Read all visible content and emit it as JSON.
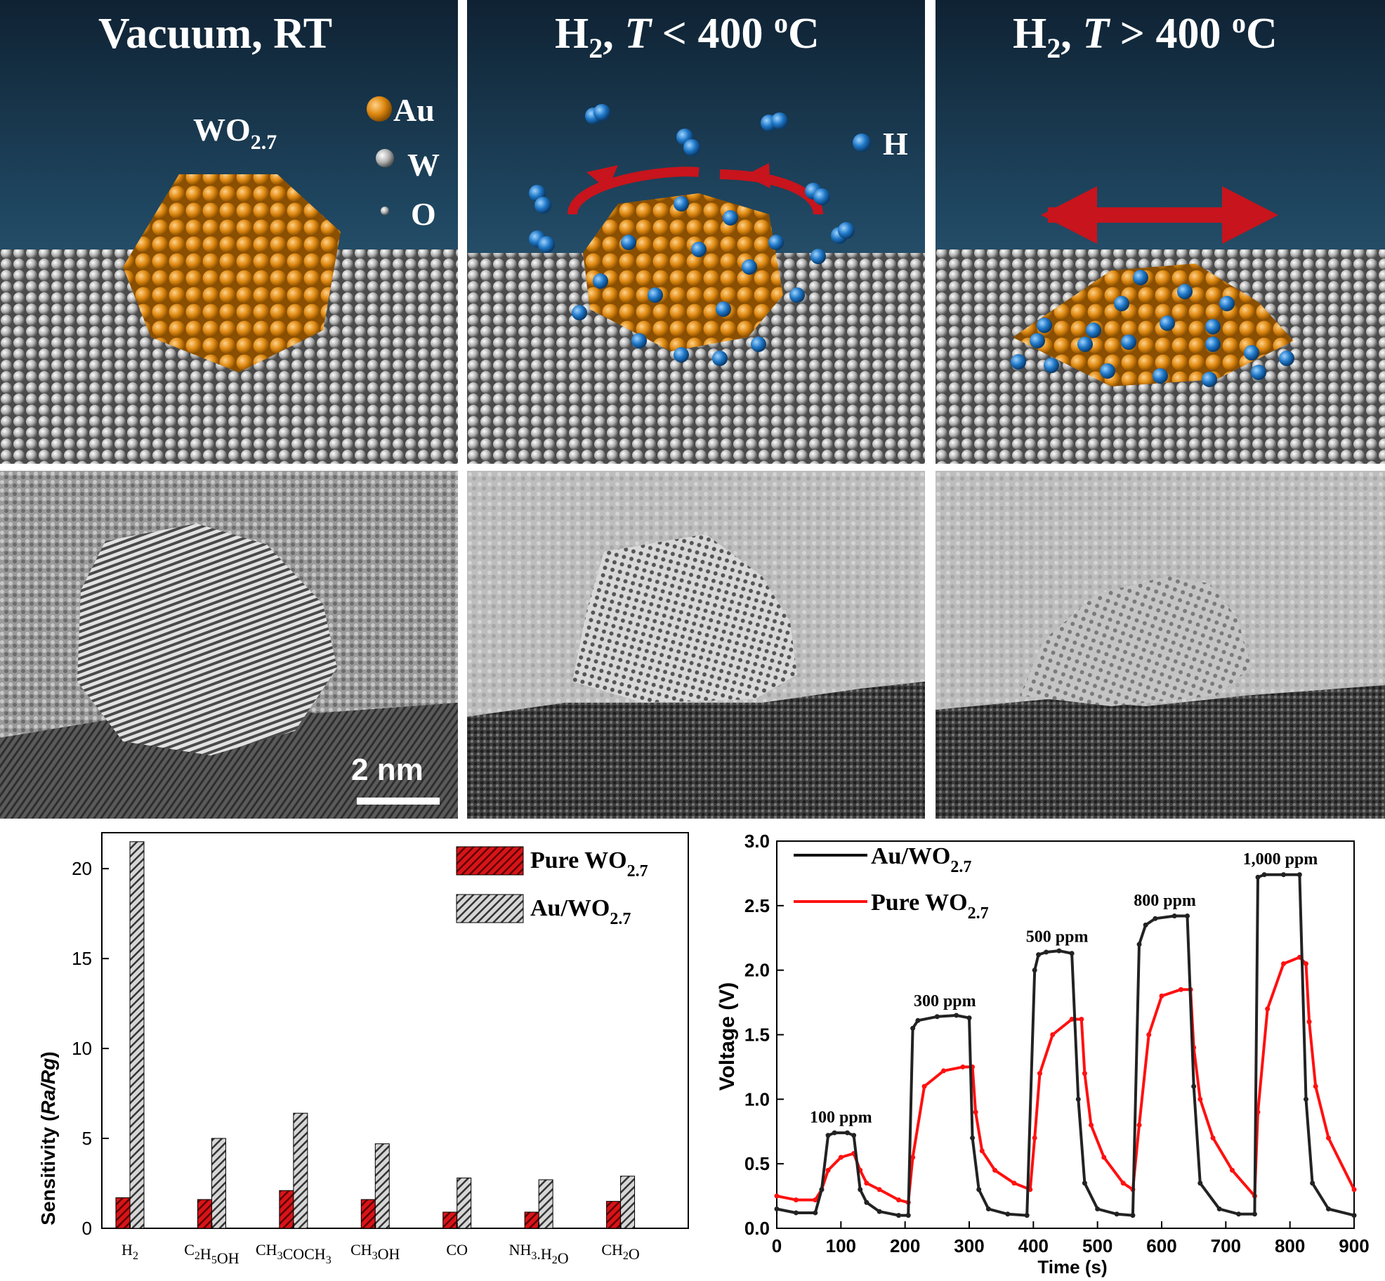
{
  "top_panels": [
    {
      "title": "Vacuum, RT",
      "label": "WO2.7",
      "legend": [
        {
          "symbol": "Au"
        },
        {
          "symbol": "W"
        },
        {
          "symbol": "O"
        }
      ]
    },
    {
      "title_main": "H",
      "title_sub": "2",
      "title_rest": ", ",
      "title_ital": "T",
      "title_cmp": " < 400 ",
      "title_sup": "o",
      "title_end": "C",
      "legend": [
        {
          "symbol": "H"
        }
      ]
    },
    {
      "title_main": "H",
      "title_sub": "2",
      "title_rest": ", ",
      "title_ital": "T",
      "title_cmp": " > 400 ",
      "title_sup": "o",
      "title_end": "C"
    }
  ],
  "panel1_label_main": "WO",
  "panel1_label_sub": "2.7",
  "scale_bar": "2  nm",
  "colors": {
    "au": "#e08a12",
    "w": "#b9b9b9",
    "h": "#1f78c8",
    "arrow": "#c8141c",
    "pure": "#d81418",
    "auwo": "#222222",
    "pure_line": "#ff1010"
  },
  "chart_data": [
    {
      "type": "bar",
      "ylabel": "Sensitivity (Ra/Rg)",
      "ylabel_plain": "Sensitivity (",
      "ylabel_ital": "Ra/Rg",
      "ylabel_close": ")",
      "ylim": [
        0,
        22
      ],
      "yticks": [
        0,
        5,
        10,
        15,
        20
      ],
      "categories": [
        "H2",
        "C2H5OH",
        "CH3COCH3",
        "CH3OH",
        "CO",
        "NH3.H2O",
        "CH2O"
      ],
      "category_labels": [
        [
          [
            "H",
            ""
          ],
          [
            "2",
            "sub"
          ]
        ],
        [
          [
            "C",
            ""
          ],
          [
            "2",
            "sub"
          ],
          [
            "H",
            ""
          ],
          [
            "5",
            "sub"
          ],
          [
            "OH",
            ""
          ]
        ],
        [
          [
            "CH",
            ""
          ],
          [
            "3",
            "sub"
          ],
          [
            "COCH",
            ""
          ],
          [
            "3",
            "sub"
          ]
        ],
        [
          [
            "CH",
            ""
          ],
          [
            "3",
            "sub"
          ],
          [
            "OH",
            ""
          ]
        ],
        [
          [
            "CO",
            ""
          ]
        ],
        [
          [
            "NH",
            ""
          ],
          [
            "3",
            "sub"
          ],
          [
            ".H",
            ""
          ],
          [
            "2",
            "sub"
          ],
          [
            "O",
            ""
          ]
        ],
        [
          [
            "CH",
            ""
          ],
          [
            "2",
            "sub"
          ],
          [
            "O",
            ""
          ]
        ]
      ],
      "series": [
        {
          "name": "Pure WO2.7",
          "name_main": "Pure WO",
          "name_sub": "2.7",
          "values": [
            1.7,
            1.6,
            2.1,
            1.6,
            0.9,
            0.9,
            1.5
          ]
        },
        {
          "name": "Au/WO2.7",
          "name_main": "Au/WO",
          "name_sub": "2.7",
          "values": [
            21.5,
            5.0,
            6.4,
            4.7,
            2.8,
            2.7,
            2.9
          ]
        }
      ],
      "legend": "top-right"
    },
    {
      "type": "line",
      "xlabel": "Time (s)",
      "ylabel": "Voltage (V)",
      "xlim": [
        0,
        900
      ],
      "ylim": [
        0,
        3.0
      ],
      "xticks": [
        0,
        100,
        200,
        300,
        400,
        500,
        600,
        700,
        800,
        900
      ],
      "yticks": [
        0.0,
        0.5,
        1.0,
        1.5,
        2.0,
        2.5,
        3.0
      ],
      "ytick_labels": [
        "0.0",
        "0.5",
        "1.0",
        "1.5",
        "2.0",
        "2.5",
        "3.0"
      ],
      "annotations": [
        {
          "text": "100 ppm",
          "x": 100,
          "y": 0.82
        },
        {
          "text": "300 ppm",
          "x": 262,
          "y": 1.72
        },
        {
          "text": "500 ppm",
          "x": 437,
          "y": 2.22
        },
        {
          "text": "800 ppm",
          "x": 605,
          "y": 2.5
        },
        {
          "text": "1,000 ppm",
          "x": 785,
          "y": 2.82
        }
      ],
      "series": [
        {
          "name": "Au/WO2.7",
          "name_main": "Au/WO",
          "name_sub": "2.7",
          "x": [
            0,
            30,
            60,
            70,
            80,
            90,
            110,
            120,
            130,
            140,
            160,
            190,
            205,
            212,
            220,
            250,
            280,
            300,
            305,
            315,
            330,
            360,
            390,
            402,
            408,
            420,
            440,
            460,
            470,
            480,
            500,
            530,
            555,
            565,
            575,
            590,
            620,
            640,
            650,
            660,
            690,
            720,
            745,
            750,
            760,
            790,
            815,
            825,
            835,
            860,
            900
          ],
          "y": [
            0.15,
            0.12,
            0.12,
            0.3,
            0.72,
            0.74,
            0.74,
            0.72,
            0.3,
            0.2,
            0.13,
            0.1,
            0.1,
            1.55,
            1.61,
            1.64,
            1.65,
            1.63,
            0.7,
            0.3,
            0.15,
            0.11,
            0.1,
            2.0,
            2.12,
            2.14,
            2.15,
            2.13,
            1.0,
            0.35,
            0.15,
            0.11,
            0.1,
            2.2,
            2.35,
            2.4,
            2.42,
            2.42,
            1.1,
            0.35,
            0.15,
            0.11,
            0.11,
            2.72,
            2.74,
            2.74,
            2.74,
            1.0,
            0.35,
            0.15,
            0.1
          ]
        },
        {
          "name": "Pure WO2.7",
          "name_main": "Pure WO",
          "name_sub": "2.7",
          "x": [
            0,
            30,
            60,
            70,
            80,
            100,
            120,
            130,
            140,
            160,
            190,
            205,
            212,
            230,
            260,
            290,
            305,
            310,
            320,
            340,
            370,
            395,
            402,
            410,
            430,
            460,
            475,
            480,
            490,
            510,
            540,
            555,
            565,
            580,
            600,
            630,
            645,
            650,
            660,
            680,
            710,
            745,
            750,
            765,
            790,
            815,
            825,
            830,
            840,
            860,
            900
          ],
          "y": [
            0.25,
            0.22,
            0.22,
            0.3,
            0.45,
            0.55,
            0.58,
            0.45,
            0.35,
            0.3,
            0.22,
            0.2,
            0.55,
            1.1,
            1.22,
            1.25,
            1.25,
            0.9,
            0.6,
            0.45,
            0.35,
            0.3,
            0.7,
            1.2,
            1.5,
            1.62,
            1.62,
            1.2,
            0.8,
            0.55,
            0.35,
            0.3,
            0.8,
            1.5,
            1.8,
            1.85,
            1.85,
            1.4,
            1.0,
            0.7,
            0.45,
            0.25,
            0.9,
            1.7,
            2.05,
            2.1,
            2.05,
            1.6,
            1.1,
            0.7,
            0.3
          ]
        }
      ],
      "legend": "top-left"
    }
  ]
}
